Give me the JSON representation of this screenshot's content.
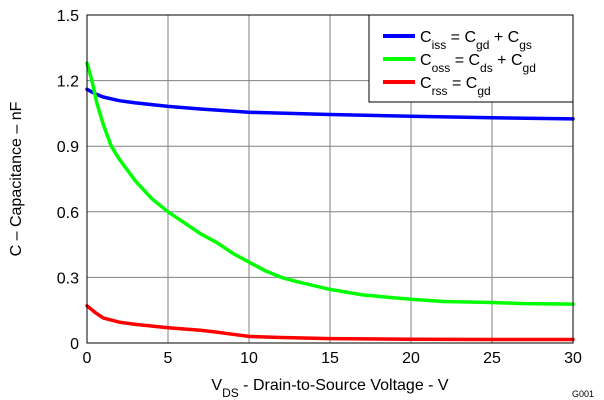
{
  "chart_data": {
    "type": "line",
    "xlabel": {
      "main": "V",
      "sub": "DS",
      "rest": " - Drain-to-Source Voltage - V"
    },
    "ylabel": "C – Capacitance – nF",
    "figure_id": "G001",
    "xlim": [
      0,
      30
    ],
    "ylim": [
      0,
      1.5
    ],
    "xticks": [
      0,
      5,
      10,
      15,
      20,
      25,
      30
    ],
    "xtick_labels": [
      "0",
      "5",
      "10",
      "15",
      "20",
      "25",
      "30"
    ],
    "yticks": [
      0,
      0.3,
      0.6,
      0.9,
      1.2,
      1.5
    ],
    "ytick_labels": [
      "0",
      "0.3",
      "0.6",
      "0.9",
      "1.2",
      "1.5"
    ],
    "grid": true,
    "legend_position": "top-right",
    "series": [
      {
        "id": "ciss",
        "color": "#0000ff",
        "legend": [
          {
            "t": "C"
          },
          {
            "t": "iss",
            "sub": true
          },
          {
            "t": " = C"
          },
          {
            "t": "gd",
            "sub": true
          },
          {
            "t": " + C"
          },
          {
            "t": "gs",
            "sub": true
          }
        ],
        "x": [
          0,
          0.5,
          1,
          2,
          3,
          5,
          7,
          10,
          15,
          20,
          25,
          30
        ],
        "y": [
          1.16,
          1.14,
          1.125,
          1.108,
          1.098,
          1.082,
          1.07,
          1.055,
          1.045,
          1.037,
          1.03,
          1.025
        ]
      },
      {
        "id": "coss",
        "color": "#00ff00",
        "legend": [
          {
            "t": "C"
          },
          {
            "t": "oss",
            "sub": true
          },
          {
            "t": " = C"
          },
          {
            "t": "ds",
            "sub": true
          },
          {
            "t": " + C"
          },
          {
            "t": "gd",
            "sub": true
          }
        ],
        "x": [
          0,
          0.3,
          0.6,
          1,
          1.5,
          2,
          3,
          4,
          5,
          6,
          7,
          8,
          9,
          10,
          11,
          12,
          13,
          15,
          17,
          20,
          22,
          25,
          27,
          30
        ],
        "y": [
          1.28,
          1.2,
          1.1,
          1.0,
          0.9,
          0.84,
          0.74,
          0.66,
          0.6,
          0.55,
          0.5,
          0.46,
          0.41,
          0.37,
          0.33,
          0.3,
          0.28,
          0.245,
          0.22,
          0.2,
          0.19,
          0.185,
          0.18,
          0.178
        ]
      },
      {
        "id": "crss",
        "color": "#ff0000",
        "legend": [
          {
            "t": "C"
          },
          {
            "t": "rss",
            "sub": true
          },
          {
            "t": " =  C"
          },
          {
            "t": "gd",
            "sub": true
          }
        ],
        "x": [
          0,
          0.5,
          1,
          2,
          3,
          5,
          7,
          8,
          9,
          10,
          12,
          15,
          20,
          25,
          30
        ],
        "y": [
          0.17,
          0.14,
          0.115,
          0.095,
          0.085,
          0.07,
          0.058,
          0.05,
          0.04,
          0.03,
          0.025,
          0.02,
          0.017,
          0.016,
          0.016
        ]
      }
    ]
  }
}
